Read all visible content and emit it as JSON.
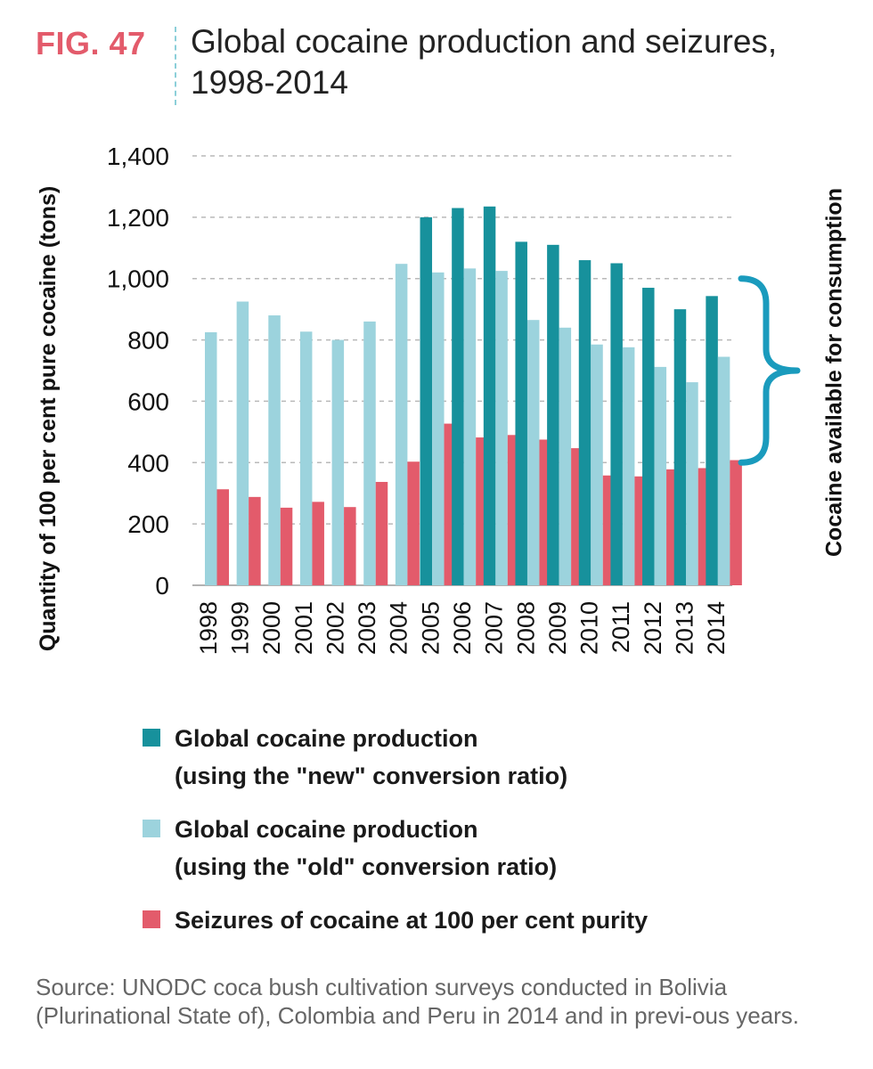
{
  "figure": {
    "number": "FIG. 47",
    "title": "Global cocaine production and seizures, 1998-2014"
  },
  "colors": {
    "new": "#17919c",
    "old": "#9cd3dd",
    "seizures": "#e35b6b",
    "fig_label": "#e35b6b",
    "brace": "#1a9bbd",
    "grid": "#b9b9b9"
  },
  "chart_data": {
    "type": "bar",
    "categories": [
      "1998",
      "1999",
      "2000",
      "2001",
      "2002",
      "2003",
      "2004",
      "2005",
      "2006",
      "2007",
      "2008",
      "2009",
      "2010",
      "2011",
      "2012",
      "2013",
      "2014"
    ],
    "series": [
      {
        "key": "new",
        "name": "Global cocaine production (using the \"new\" conversion ratio)",
        "values": [
          null,
          null,
          null,
          null,
          null,
          null,
          null,
          1200,
          1230,
          1235,
          1120,
          1110,
          1060,
          1050,
          970,
          900,
          943
        ]
      },
      {
        "key": "old",
        "name": "Global cocaine production (using the \"old\" conversion ratio)",
        "values": [
          825,
          925,
          880,
          827,
          800,
          860,
          1048,
          1020,
          1033,
          1025,
          865,
          840,
          785,
          776,
          712,
          662,
          745
        ]
      },
      {
        "key": "seizures",
        "name": "Seizures of cocaine at 100 per cent purity",
        "values": [
          313,
          288,
          253,
          272,
          255,
          337,
          403,
          527,
          482,
          490,
          475,
          447,
          358,
          355,
          378,
          382,
          408
        ]
      }
    ],
    "ylabel": "Quantity of 100 per cent pure cocaine (tons)",
    "yticks": [
      0,
      200,
      400,
      600,
      800,
      1000,
      1200,
      1400
    ],
    "ylim": [
      0,
      1400
    ],
    "grid": true,
    "bracket": {
      "label": "Cocaine available for consumption",
      "from": 400,
      "to": 1000
    }
  },
  "legend": {
    "items": [
      {
        "key": "new",
        "lines": [
          "Global cocaine production",
          "(using the \"new\" conversion ratio)"
        ]
      },
      {
        "key": "old",
        "lines": [
          "Global cocaine production",
          "(using the \"old\" conversion ratio)"
        ]
      },
      {
        "key": "seizures",
        "lines": [
          "Seizures of cocaine at 100 per cent purity"
        ]
      }
    ]
  },
  "source": "Source: UNODC coca bush cultivation surveys conducted in Bolivia (Plurinational State of), Colombia and Peru in 2014 and in previ-ous years."
}
